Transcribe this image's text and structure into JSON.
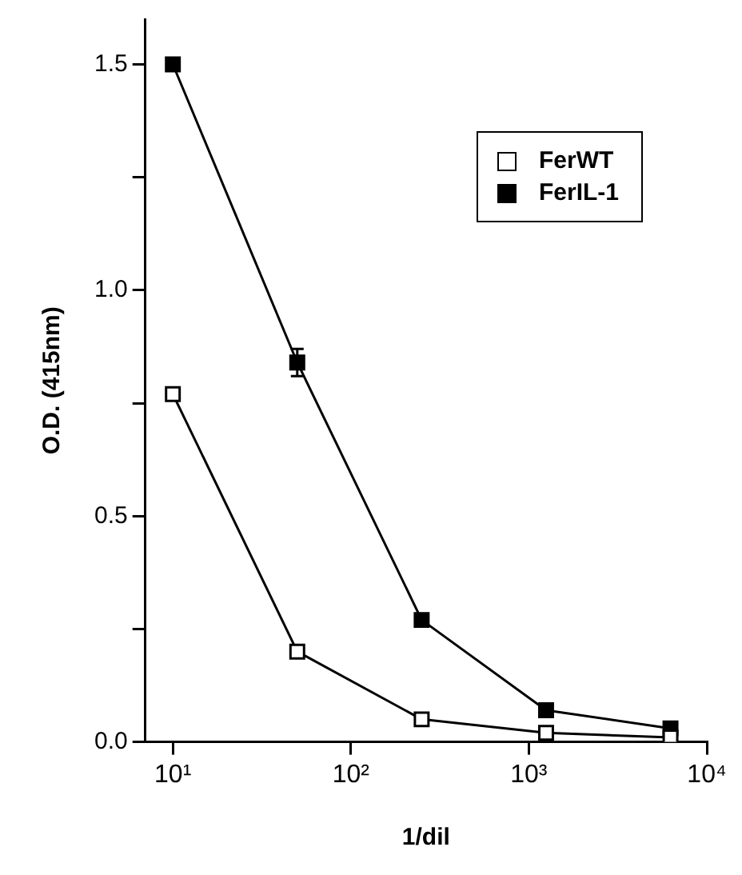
{
  "chart_data": {
    "type": "line",
    "xlabel": "1/dil",
    "ylabel": "O.D. (415nm)",
    "x": [
      10,
      50,
      250,
      1250,
      6250
    ],
    "series": [
      {
        "name": "FerWT",
        "color": "#ffffff",
        "values": [
          0.77,
          0.2,
          0.05,
          0.02,
          0.01
        ]
      },
      {
        "name": "FerIL-1",
        "color": "#000000",
        "values": [
          1.5,
          0.84,
          0.27,
          0.07,
          0.03
        ],
        "errors": [
          null,
          0.03,
          null,
          null,
          null
        ]
      }
    ],
    "log": "x",
    "xlim": [
      7,
      10000
    ],
    "xticks": [
      {
        "value": 10,
        "label": "10¹"
      },
      {
        "value": 100,
        "label": "10²"
      },
      {
        "value": 1000,
        "label": "10³"
      },
      {
        "value": 10000,
        "label": "10⁴"
      }
    ],
    "ylim": [
      0,
      1.6
    ],
    "yticks": [
      {
        "value": 0,
        "label": "0.0"
      },
      {
        "value": 0.25,
        "label": null
      },
      {
        "value": 0.5,
        "label": "0.5"
      },
      {
        "value": 0.75,
        "label": null
      },
      {
        "value": 1,
        "label": "1.0"
      },
      {
        "value": 1.25,
        "label": null
      },
      {
        "value": 1.5,
        "label": "1.5"
      }
    ],
    "grid": false,
    "legend": "top right",
    "marker": "square",
    "line_style": "solid"
  }
}
